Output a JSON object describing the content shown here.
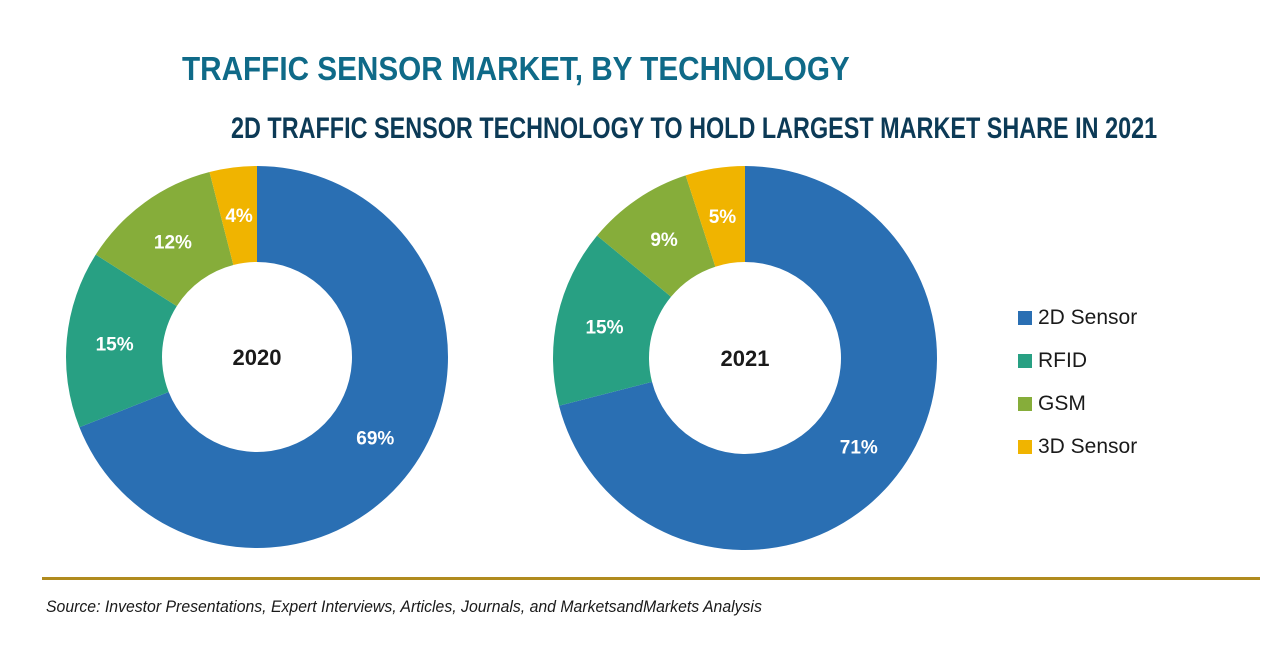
{
  "title": "TRAFFIC SENSOR MARKET, BY TECHNOLOGY",
  "subtitle": "2D TRAFFIC SENSOR TECHNOLOGY TO HOLD LARGEST MARKET SHARE IN 2021",
  "source": "Source: Investor Presentations, Expert Interviews, Articles, Journals, and MarketsandMarkets Analysis",
  "colors": {
    "2D Sensor": "#2a6fb3",
    "RFID": "#28a083",
    "GSM": "#86ad3a",
    "3D Sensor": "#f0b400",
    "title": "#0f6a88",
    "rule": "#b08b1e"
  },
  "chart_data": [
    {
      "type": "pie",
      "variant": "donut",
      "title": "2020",
      "center_label": "2020",
      "categories": [
        "2D Sensor",
        "RFID",
        "GSM",
        "3D Sensor"
      ],
      "values": [
        69,
        15,
        12,
        4
      ],
      "labels": [
        "69%",
        "15%",
        "12%",
        "4%"
      ],
      "unit": "%",
      "legend": "right"
    },
    {
      "type": "pie",
      "variant": "donut",
      "title": "2021",
      "center_label": "2021",
      "categories": [
        "2D Sensor",
        "RFID",
        "GSM",
        "3D Sensor"
      ],
      "values": [
        71,
        15,
        9,
        5
      ],
      "labels": [
        "71%",
        "15%",
        "9%",
        "5%"
      ],
      "unit": "%",
      "legend": "right"
    }
  ],
  "legend": [
    {
      "label": "2D Sensor"
    },
    {
      "label": "RFID"
    },
    {
      "label": "GSM"
    },
    {
      "label": "3D Sensor"
    }
  ]
}
